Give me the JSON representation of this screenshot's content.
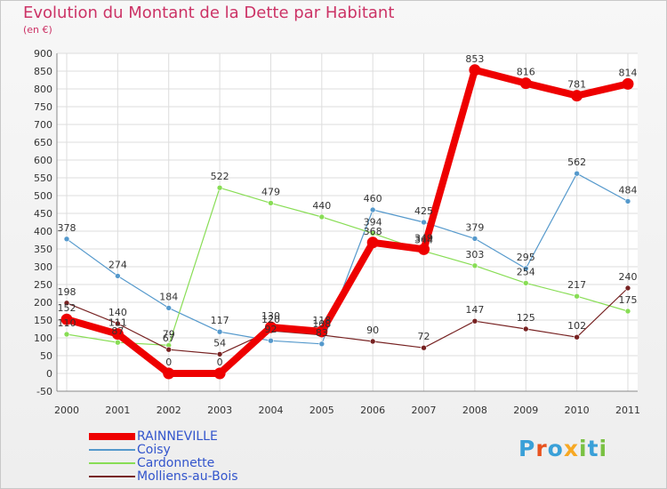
{
  "title": "Evolution du Montant de la Dette par Habitant",
  "subtitle": "(en €)",
  "logo": {
    "letters": [
      "P",
      "r",
      "o",
      "x",
      "i",
      "t",
      "i"
    ],
    "colors": [
      "#3aa0d8",
      "#e8531f",
      "#3aa0d8",
      "#f7a823",
      "#7ac143",
      "#3aa0d8",
      "#7ac143"
    ]
  },
  "colors": {
    "accent": "#cc3366",
    "legend_text": "#3355cc",
    "axis_text": "#333333"
  },
  "chart_data": {
    "type": "line",
    "title": "Evolution du Montant de la Dette par Habitant",
    "subtitle": "(en €)",
    "xlabel": "",
    "ylabel": "",
    "x": [
      "2000",
      "2001",
      "2002",
      "2003",
      "2004",
      "2005",
      "2006",
      "2007",
      "2008",
      "2009",
      "2010",
      "2011"
    ],
    "ylim": [
      -50,
      900
    ],
    "yticks": [
      -50,
      0,
      50,
      100,
      150,
      200,
      250,
      300,
      350,
      400,
      450,
      500,
      550,
      600,
      650,
      700,
      750,
      800,
      850,
      900
    ],
    "grid": true,
    "legend_position": "bottom-left",
    "series": [
      {
        "name": "RAINNEVILLE",
        "color": "#ee0000",
        "width": 8,
        "marker": 6,
        "values": [
          152,
          111,
          0,
          0,
          130,
          118,
          368,
          349,
          853,
          816,
          781,
          814
        ]
      },
      {
        "name": "Coisy",
        "color": "#5599cc",
        "width": 1.2,
        "marker": 3,
        "values": [
          378,
          274,
          184,
          117,
          92,
          83,
          460,
          425,
          379,
          295,
          562,
          484
        ]
      },
      {
        "name": "Cardonnette",
        "color": "#88dd55",
        "width": 1.2,
        "marker": 3,
        "values": [
          110,
          87,
          79,
          522,
          479,
          440,
          394,
          344,
          303,
          254,
          217,
          175
        ]
      },
      {
        "name": "Molliens-au-Bois",
        "color": "#772222",
        "width": 1.2,
        "marker": 3,
        "values": [
          198,
          140,
          67,
          54,
          120,
          108,
          90,
          72,
          147,
          125,
          102,
          240
        ]
      }
    ],
    "labels": [
      {
        "series": 1,
        "labels": [
          "378",
          "274",
          "184",
          "117",
          "92",
          "83",
          "460",
          "425",
          "379",
          "295",
          "562",
          "484"
        ]
      },
      {
        "series": 2,
        "labels": [
          "110",
          "87",
          "79",
          "522",
          "479",
          "440",
          "394",
          "344",
          "303",
          "254",
          "217",
          "175"
        ]
      },
      {
        "series": 3,
        "labels": [
          "198",
          "140",
          "67",
          "54",
          "120",
          "108",
          "90",
          "72",
          "147",
          "125",
          "102",
          "240"
        ]
      },
      {
        "series": 0,
        "labels": [
          "152",
          "111",
          "0",
          "0",
          "130",
          "118",
          "368",
          "349",
          "853",
          "816",
          "781",
          "814"
        ]
      }
    ]
  }
}
